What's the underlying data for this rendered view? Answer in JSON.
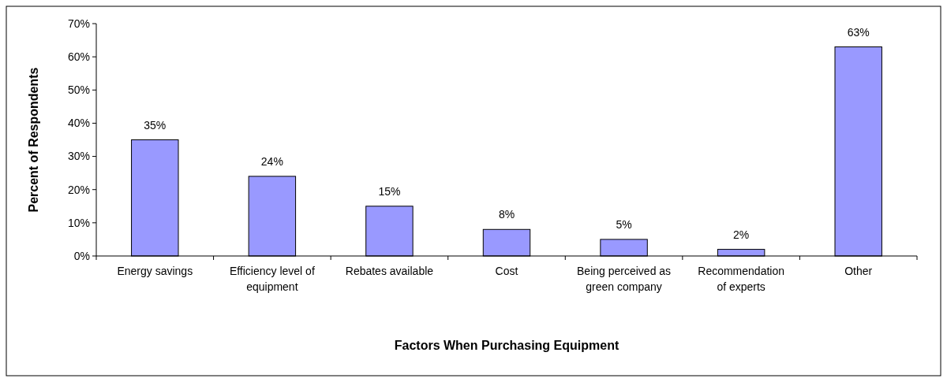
{
  "chart_data": {
    "type": "bar",
    "xlabel": "Factors When Purchasing Equipment",
    "ylabel": "Percent of Respondents",
    "categories": [
      "Energy savings",
      "Efficiency level of equipment",
      "Rebates available",
      "Cost",
      "Being perceived as green company",
      "Recommendation of experts",
      "Other"
    ],
    "values": [
      35,
      24,
      15,
      8,
      5,
      2,
      63
    ],
    "value_labels": [
      "35%",
      "24%",
      "15%",
      "8%",
      "5%",
      "2%",
      "63%"
    ],
    "color": "#9999ff",
    "ylim": [
      0,
      70
    ],
    "yticks": [
      {
        "value": 0,
        "label": "0%"
      },
      {
        "value": 10,
        "label": "10%"
      },
      {
        "value": 20,
        "label": "20%"
      },
      {
        "value": 30,
        "label": "30%"
      },
      {
        "value": 40,
        "label": "40%"
      },
      {
        "value": 50,
        "label": "50%"
      },
      {
        "value": 60,
        "label": "60%"
      },
      {
        "value": 70,
        "label": "70%"
      }
    ],
    "grid": false
  }
}
